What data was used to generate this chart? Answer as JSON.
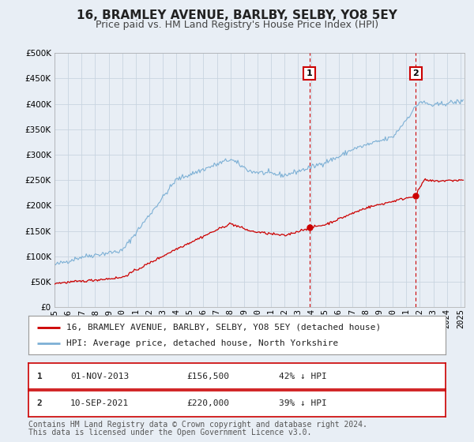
{
  "title": "16, BRAMLEY AVENUE, BARLBY, SELBY, YO8 5EY",
  "subtitle": "Price paid vs. HM Land Registry's House Price Index (HPI)",
  "ylim": [
    0,
    500000
  ],
  "xlim_left": 1995,
  "xlim_right": 2025.3,
  "yticks": [
    0,
    50000,
    100000,
    150000,
    200000,
    250000,
    300000,
    350000,
    400000,
    450000,
    500000
  ],
  "ytick_labels": [
    "£0",
    "£50K",
    "£100K",
    "£150K",
    "£200K",
    "£250K",
    "£300K",
    "£350K",
    "£400K",
    "£450K",
    "£500K"
  ],
  "xticks": [
    1995,
    1996,
    1997,
    1998,
    1999,
    2000,
    2001,
    2002,
    2003,
    2004,
    2005,
    2006,
    2007,
    2008,
    2009,
    2010,
    2011,
    2012,
    2013,
    2014,
    2015,
    2016,
    2017,
    2018,
    2019,
    2020,
    2021,
    2022,
    2023,
    2024,
    2025
  ],
  "bg_color": "#e8eef5",
  "plot_bg_color": "#e8eef5",
  "grid_color": "#c8d4e0",
  "fig_bg_color": "#e8eef5",
  "red_line_color": "#cc0000",
  "blue_line_color": "#7db0d5",
  "marker1_date": 2013.835,
  "marker1_value": 156500,
  "marker2_date": 2021.7,
  "marker2_value": 220000,
  "vline1_x": 2013.835,
  "vline2_x": 2021.7,
  "legend_label1": "16, BRAMLEY AVENUE, BARLBY, SELBY, YO8 5EY (detached house)",
  "legend_label2": "HPI: Average price, detached house, North Yorkshire",
  "annotation1_label": "1",
  "annotation2_label": "2",
  "table_row1": [
    "1",
    "01-NOV-2013",
    "£156,500",
    "42% ↓ HPI"
  ],
  "table_row2": [
    "2",
    "10-SEP-2021",
    "£220,000",
    "39% ↓ HPI"
  ],
  "footnote1": "Contains HM Land Registry data © Crown copyright and database right 2024.",
  "footnote2": "This data is licensed under the Open Government Licence v3.0.",
  "title_fontsize": 11,
  "subtitle_fontsize": 9,
  "tick_fontsize": 7.5,
  "legend_fontsize": 8,
  "table_fontsize": 8,
  "footnote_fontsize": 7
}
